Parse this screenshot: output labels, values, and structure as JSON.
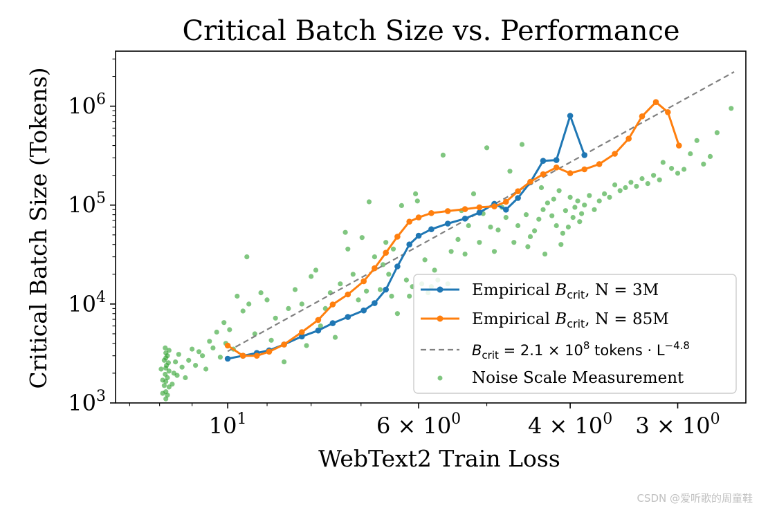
{
  "chart_data": {
    "type": "line",
    "title": "Critical Batch Size vs. Performance",
    "xlabel": "WebText2 Train Loss",
    "ylabel": "Critical Batch Size (Tokens)",
    "x_scale": "log",
    "x_reversed": true,
    "y_scale": "log",
    "xlim": [
      13.5,
      2.5
    ],
    "ylim": [
      1000,
      3600000
    ],
    "grid": false,
    "legend_position": "lower-right",
    "x_ticks": [
      {
        "value": 10,
        "base": "10",
        "exp": "1"
      },
      {
        "value": 6,
        "base": "6 × 10",
        "exp": "0"
      },
      {
        "value": 4,
        "base": "4 × 10",
        "exp": "0"
      },
      {
        "value": 3,
        "base": "3 × 10",
        "exp": "0"
      }
    ],
    "y_ticks": [
      {
        "value": 1000,
        "base": "10",
        "exp": "3"
      },
      {
        "value": 10000,
        "base": "10",
        "exp": "4"
      },
      {
        "value": 100000,
        "base": "10",
        "exp": "5"
      },
      {
        "value": 1000000,
        "base": "10",
        "exp": "6"
      }
    ],
    "series": [
      {
        "name": "Empirical B_crit, N = 3M",
        "legend_text": "Empirical ",
        "legend_b": "B",
        "legend_sub": "crit",
        "legend_n": ", N = ",
        "legend_val": "3M",
        "kind": "line-marker",
        "color": "#1f77b4",
        "x": [
          10.0,
          9.6,
          9.25,
          8.95,
          8.6,
          8.2,
          7.85,
          7.55,
          7.25,
          6.95,
          6.75,
          6.55,
          6.35,
          6.15,
          6.0,
          5.8,
          5.55,
          5.3,
          5.1,
          4.9,
          4.75,
          4.6,
          4.45,
          4.3,
          4.15,
          4.0,
          3.85
        ],
        "y": [
          2800,
          3000,
          3200,
          3400,
          3900,
          4700,
          5400,
          6400,
          7400,
          8600,
          10200,
          14000,
          24000,
          40000,
          49000,
          57000,
          65000,
          73000,
          84000,
          103000,
          90000,
          118000,
          170000,
          280000,
          285000,
          800000,
          320000
        ]
      },
      {
        "name": "Empirical B_crit, N = 85M",
        "legend_text": "Empirical ",
        "legend_b": "B",
        "legend_sub": "crit",
        "legend_n": ", N = ",
        "legend_val": "85M",
        "kind": "line-marker",
        "color": "#ff7f0e",
        "x": [
          10.0,
          9.6,
          9.25,
          8.95,
          8.6,
          8.2,
          7.85,
          7.55,
          7.25,
          6.95,
          6.75,
          6.55,
          6.35,
          6.15,
          6.0,
          5.8,
          5.55,
          5.3,
          5.1,
          4.9,
          4.75,
          4.6,
          4.45,
          4.3,
          4.15,
          4.0,
          3.85,
          3.7,
          3.55,
          3.42,
          3.3,
          3.18,
          3.08,
          2.99
        ],
        "y": [
          3800,
          3000,
          3000,
          3300,
          3900,
          5200,
          6900,
          9900,
          12500,
          17000,
          23000,
          33000,
          48000,
          68000,
          75000,
          83000,
          87000,
          91000,
          95000,
          97000,
          108000,
          138000,
          172000,
          205000,
          240000,
          210000,
          230000,
          260000,
          330000,
          470000,
          790000,
          1100000,
          870000,
          400000
        ]
      },
      {
        "name": "B_crit = 2.1 × 10^8 tokens · L^-4.8",
        "legend_math": "B",
        "legend_sub": "crit",
        "legend_rest": " = 2.1 × 10",
        "legend_exp": "8",
        "legend_tail": " tokens · L",
        "legend_tail_exp": "−4.8",
        "kind": "dashed",
        "color": "#808080",
        "coef": 210000000,
        "power": -4.8,
        "x_range": [
          10.0,
          2.58
        ]
      },
      {
        "name": "Noise Scale Measurement",
        "kind": "scatter",
        "color": "#2ca02c",
        "points": [
          [
            11.8,
            1100
          ],
          [
            11.75,
            1200
          ],
          [
            11.8,
            1300
          ],
          [
            11.7,
            1450
          ],
          [
            11.85,
            1500
          ],
          [
            11.8,
            1650
          ],
          [
            11.75,
            1800
          ],
          [
            11.82,
            1950
          ],
          [
            11.7,
            2100
          ],
          [
            11.8,
            2250
          ],
          [
            11.78,
            2400
          ],
          [
            11.72,
            2550
          ],
          [
            11.85,
            2700
          ],
          [
            11.8,
            2850
          ],
          [
            11.75,
            3000
          ],
          [
            11.8,
            3200
          ],
          [
            11.7,
            3400
          ],
          [
            11.82,
            3600
          ],
          [
            11.9,
            1250
          ],
          [
            11.9,
            1700
          ],
          [
            11.95,
            2200
          ],
          [
            11.6,
            1550
          ],
          [
            11.55,
            2000
          ],
          [
            11.5,
            2600
          ],
          [
            11.45,
            1900
          ],
          [
            11.4,
            3100
          ],
          [
            11.3,
            2300
          ],
          [
            11.2,
            1800
          ],
          [
            11.1,
            2700
          ],
          [
            11.0,
            3500
          ],
          [
            10.9,
            2400
          ],
          [
            10.8,
            3300
          ],
          [
            10.7,
            3000
          ],
          [
            10.6,
            2200
          ],
          [
            10.5,
            4200
          ],
          [
            10.4,
            3600
          ],
          [
            10.3,
            5200
          ],
          [
            10.2,
            2900
          ],
          [
            10.1,
            6500
          ],
          [
            10.05,
            4000
          ],
          [
            9.95,
            5500
          ],
          [
            9.85,
            3500
          ],
          [
            9.75,
            12000
          ],
          [
            9.6,
            8500
          ],
          [
            9.5,
            30000
          ],
          [
            9.45,
            10000
          ],
          [
            9.3,
            5000
          ],
          [
            9.15,
            13000
          ],
          [
            9.0,
            11000
          ],
          [
            8.9,
            4300
          ],
          [
            8.8,
            7200
          ],
          [
            8.6,
            2600
          ],
          [
            8.5,
            9000
          ],
          [
            8.35,
            14000
          ],
          [
            8.2,
            10000
          ],
          [
            8.1,
            3800
          ],
          [
            8.0,
            19000
          ],
          [
            7.9,
            22000
          ],
          [
            7.8,
            6000
          ],
          [
            7.7,
            9000
          ],
          [
            7.6,
            13000
          ],
          [
            7.5,
            4600
          ],
          [
            7.4,
            16000
          ],
          [
            7.3,
            53000
          ],
          [
            7.25,
            36000
          ],
          [
            7.15,
            20000
          ],
          [
            7.05,
            11000
          ],
          [
            6.98,
            47000
          ],
          [
            6.9,
            13500
          ],
          [
            6.85,
            108000
          ],
          [
            6.75,
            30000
          ],
          [
            6.65,
            14000
          ],
          [
            6.6,
            25000
          ],
          [
            6.55,
            42000
          ],
          [
            6.5,
            20000
          ],
          [
            6.45,
            12000
          ],
          [
            6.42,
            36000
          ],
          [
            6.35,
            8000
          ],
          [
            6.28,
            99000
          ],
          [
            6.2,
            17500
          ],
          [
            6.15,
            12000
          ],
          [
            6.1,
            15000
          ],
          [
            6.05,
            130000
          ],
          [
            6.02,
            110000
          ],
          [
            5.95,
            16000
          ],
          [
            5.9,
            28000
          ],
          [
            5.85,
            13000
          ],
          [
            5.8,
            15000
          ],
          [
            5.75,
            22000
          ],
          [
            5.7,
            17500
          ],
          [
            5.62,
            320000
          ],
          [
            5.55,
            16000
          ],
          [
            5.5,
            34000
          ],
          [
            5.4,
            45000
          ],
          [
            5.35,
            88000
          ],
          [
            5.3,
            32000
          ],
          [
            5.25,
            62000
          ],
          [
            5.18,
            130000
          ],
          [
            5.1,
            42000
          ],
          [
            5.05,
            82000
          ],
          [
            5.0,
            380000
          ],
          [
            4.95,
            60000
          ],
          [
            4.9,
            34000
          ],
          [
            4.85,
            56000
          ],
          [
            4.8,
            95000
          ],
          [
            4.75,
            75000
          ],
          [
            4.7,
            220000
          ],
          [
            4.65,
            42000
          ],
          [
            4.6,
            62000
          ],
          [
            4.55,
            410000
          ],
          [
            4.5,
            80000
          ],
          [
            4.48,
            38000
          ],
          [
            4.45,
            48000
          ],
          [
            4.4,
            55000
          ],
          [
            4.35,
            72000
          ],
          [
            4.32,
            150000
          ],
          [
            4.3,
            90000
          ],
          [
            4.28,
            32000
          ],
          [
            4.25,
            105000
          ],
          [
            4.2,
            78000
          ],
          [
            4.18,
            115000
          ],
          [
            4.15,
            62000
          ],
          [
            4.12,
            140000
          ],
          [
            4.1,
            40000
          ],
          [
            4.08,
            52000
          ],
          [
            4.05,
            88000
          ],
          [
            4.02,
            60000
          ],
          [
            4.0,
            120000
          ],
          [
            3.97,
            75000
          ],
          [
            3.95,
            95000
          ],
          [
            3.92,
            110000
          ],
          [
            3.9,
            68000
          ],
          [
            3.88,
            82000
          ],
          [
            3.85,
            100000
          ],
          [
            3.8,
            125000
          ],
          [
            3.75,
            90000
          ],
          [
            3.7,
            110000
          ],
          [
            3.65,
            130000
          ],
          [
            3.6,
            120000
          ],
          [
            3.55,
            160000
          ],
          [
            3.5,
            140000
          ],
          [
            3.45,
            150000
          ],
          [
            3.4,
            170000
          ],
          [
            3.35,
            155000
          ],
          [
            3.3,
            185000
          ],
          [
            3.25,
            165000
          ],
          [
            3.2,
            200000
          ],
          [
            3.15,
            180000
          ],
          [
            3.12,
            270000
          ],
          [
            3.05,
            235000
          ],
          [
            3.0,
            210000
          ],
          [
            2.95,
            230000
          ],
          [
            2.9,
            330000
          ],
          [
            2.85,
            450000
          ],
          [
            2.8,
            260000
          ],
          [
            2.75,
            310000
          ],
          [
            2.7,
            540000
          ],
          [
            2.6,
            950000
          ]
        ]
      }
    ]
  },
  "watermark": "CSDN @爱听歌的周童鞋"
}
